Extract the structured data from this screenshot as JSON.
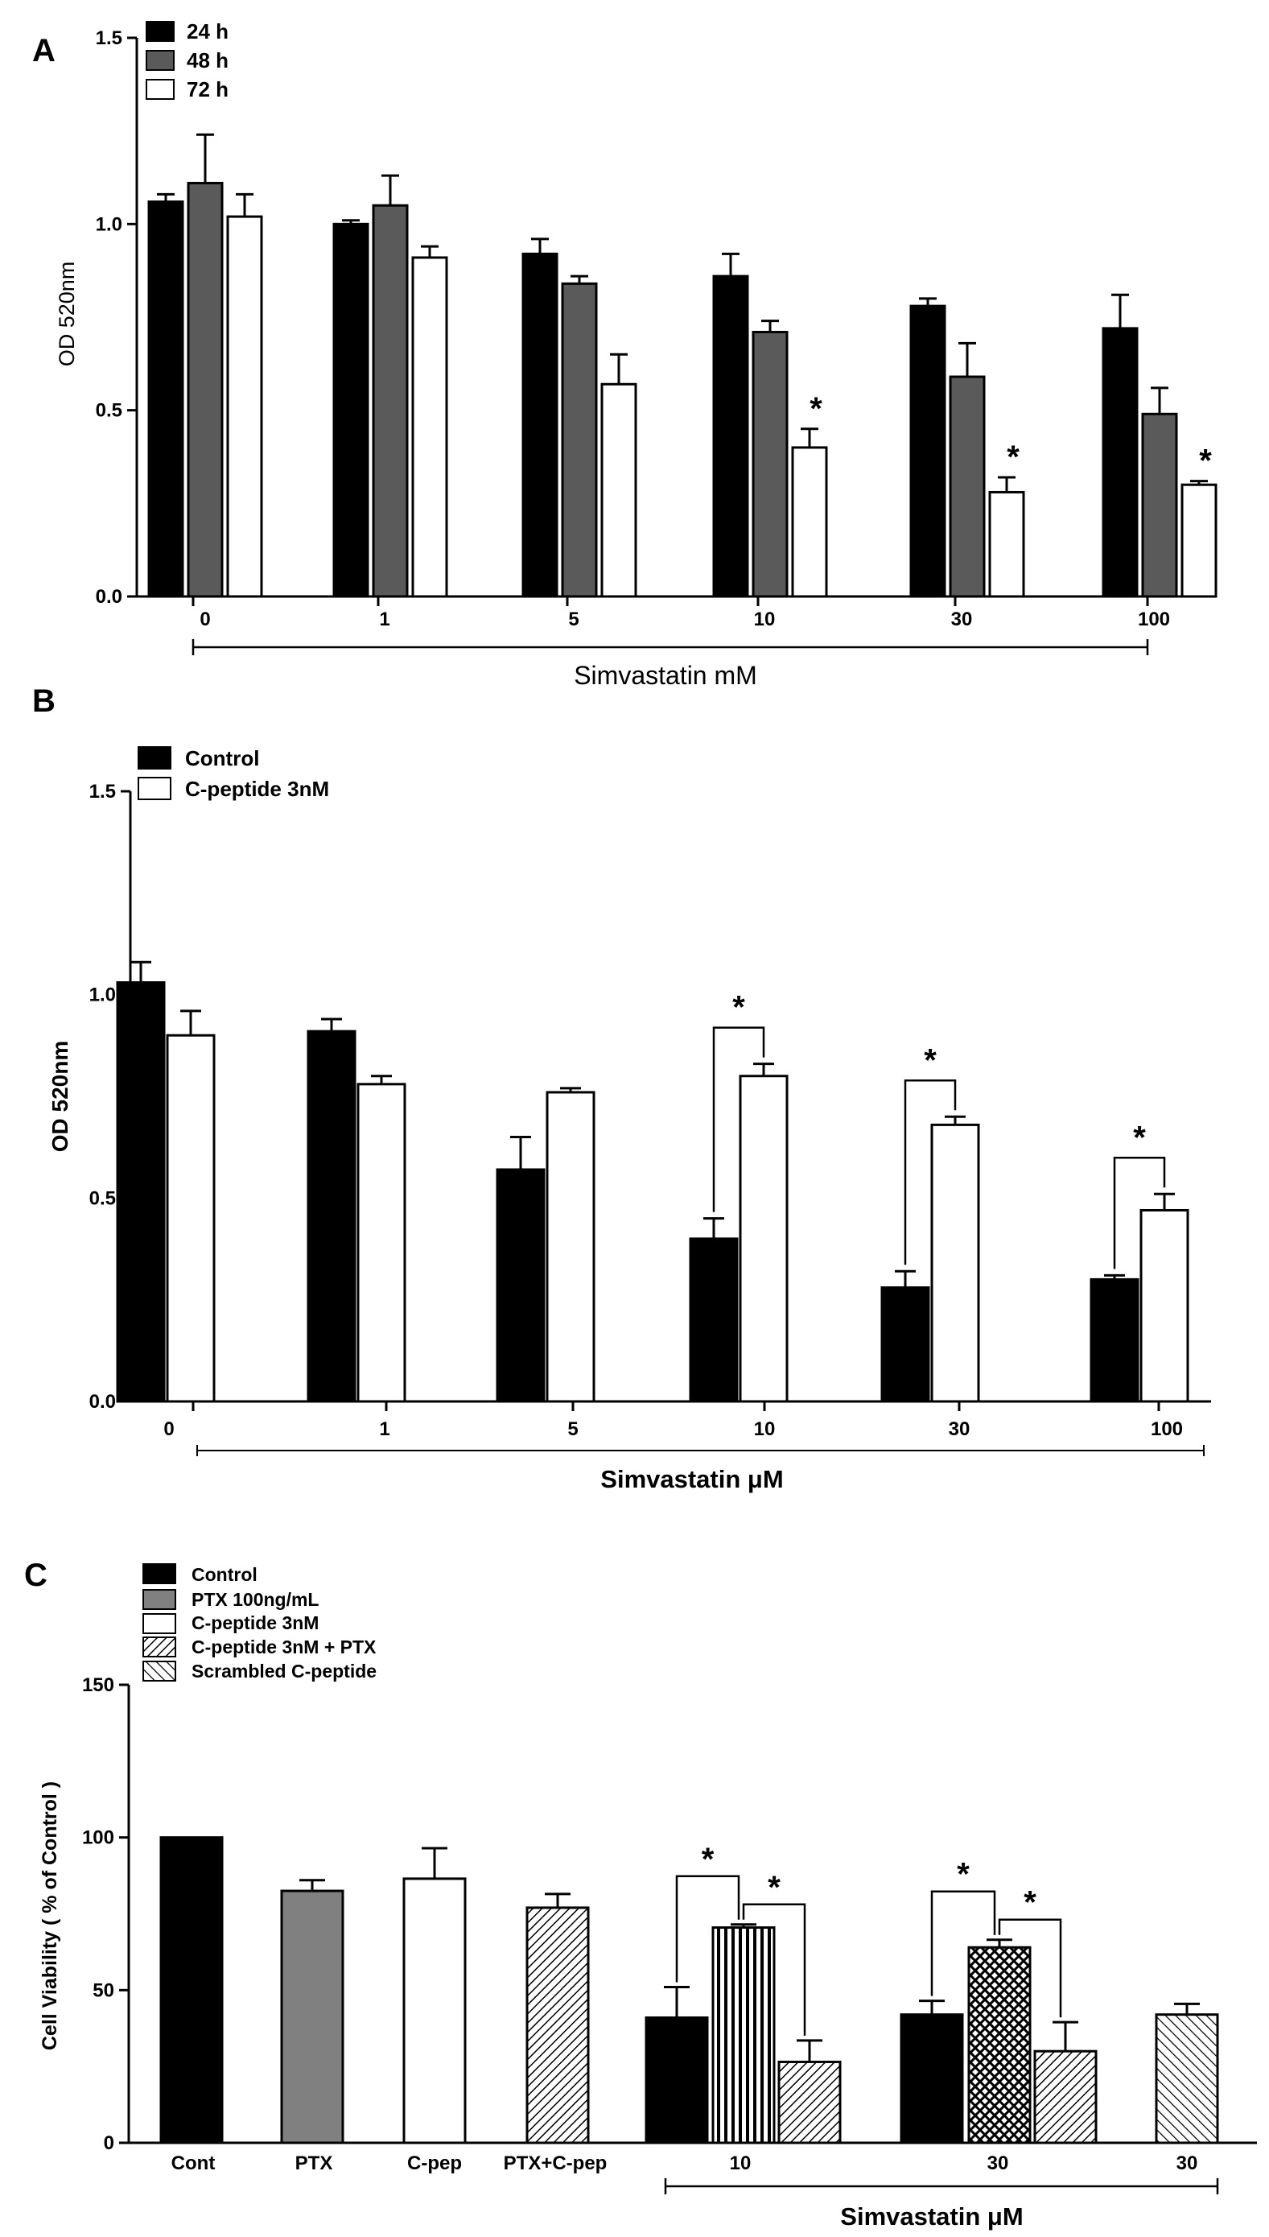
{
  "colors": {
    "black": "#000000",
    "darkgray": "#5a5a5a",
    "gray": "#808080",
    "white": "#ffffff"
  },
  "chart_data": [
    {
      "panel": "A",
      "type": "bar",
      "title": "",
      "xlabel": "Simvastatin mM",
      "ylabel": "OD 520nm",
      "ylim": [
        0,
        1.5
      ],
      "yticks": [
        "0.0",
        "0.5",
        "1.0",
        "1.5"
      ],
      "categories": [
        "0",
        "1",
        "5",
        "10",
        "30",
        "100"
      ],
      "legend_position": "top-left",
      "series": [
        {
          "name": "24 h",
          "fill": "black",
          "values": [
            1.06,
            1.0,
            0.92,
            0.86,
            0.78,
            0.72
          ],
          "errors": [
            0.02,
            0.01,
            0.04,
            0.06,
            0.02,
            0.09
          ]
        },
        {
          "name": "48 h",
          "fill": "darkgray",
          "values": [
            1.11,
            1.05,
            0.84,
            0.71,
            0.59,
            0.49
          ],
          "errors": [
            0.13,
            0.08,
            0.02,
            0.03,
            0.09,
            0.07
          ]
        },
        {
          "name": "72 h",
          "fill": "white",
          "values": [
            1.02,
            0.91,
            0.57,
            0.4,
            0.28,
            0.3
          ],
          "errors": [
            0.06,
            0.03,
            0.08,
            0.05,
            0.04,
            0.01
          ]
        }
      ],
      "annotations": [
        {
          "text": "*",
          "category": 3,
          "series": 2
        },
        {
          "text": "*",
          "category": 4,
          "series": 2
        },
        {
          "text": "*",
          "category": 5,
          "series": 2
        }
      ]
    },
    {
      "panel": "B",
      "type": "bar",
      "title": "",
      "xlabel": "Simvastatin μM",
      "ylabel": "OD 520nm",
      "ylim": [
        0,
        1.5
      ],
      "yticks": [
        "0.0",
        "0.5",
        "1.0",
        "1.5"
      ],
      "categories": [
        "0",
        "1",
        "5",
        "10",
        "30",
        "100"
      ],
      "legend_position": "top-left",
      "series": [
        {
          "name": "Control",
          "fill": "black",
          "values": [
            1.03,
            0.91,
            0.57,
            0.4,
            0.28,
            0.3
          ],
          "errors": [
            0.05,
            0.03,
            0.08,
            0.05,
            0.04,
            0.01
          ]
        },
        {
          "name": "C-peptide 3nM",
          "fill": "white",
          "values": [
            0.9,
            0.78,
            0.76,
            0.8,
            0.68,
            0.47
          ],
          "errors": [
            0.06,
            0.02,
            0.01,
            0.03,
            0.02,
            0.04
          ]
        }
      ],
      "annotations": [
        {
          "text": "*",
          "category": 3
        },
        {
          "text": "*",
          "category": 4
        },
        {
          "text": "*",
          "category": 5
        }
      ]
    },
    {
      "panel": "C",
      "type": "bar",
      "title": "",
      "xlabel": "Simvastatin μM",
      "ylabel": "Cell Viability ( % of Control )",
      "ylim": [
        0,
        150
      ],
      "yticks": [
        "0",
        "50",
        "100",
        "150"
      ],
      "categories": [
        "Cont",
        "PTX",
        "C-pep",
        "PTX+C-pep",
        "10",
        "30",
        "30"
      ],
      "legend_position": "top-left",
      "legend": [
        {
          "name": "Control",
          "fill": "black"
        },
        {
          "name": "PTX 100ng/mL",
          "fill": "gray"
        },
        {
          "name": "C-peptide 3nM",
          "fill": "white"
        },
        {
          "name": "C-peptide 3nM + PTX",
          "fill": "hatch-dense"
        },
        {
          "name": "Scrambled C-peptide",
          "fill": "hatch-diagonal"
        }
      ],
      "bars": [
        {
          "category": 0,
          "fill": "black",
          "value": 100,
          "error": 0
        },
        {
          "category": 1,
          "fill": "gray",
          "value": 82.5,
          "error": 3.5
        },
        {
          "category": 2,
          "fill": "white",
          "value": 86.5,
          "error": 10
        },
        {
          "category": 3,
          "fill": "hatch-dense",
          "value": 77,
          "error": 4.5
        },
        {
          "category": 4,
          "fill": "black",
          "value": 41,
          "error": 10
        },
        {
          "category": 4,
          "fill": "vertical-stripes",
          "value": 70.5,
          "error": 1
        },
        {
          "category": 4,
          "fill": "hatch-dense",
          "value": 26.5,
          "error": 7
        },
        {
          "category": 5,
          "fill": "black",
          "value": 42,
          "error": 4.5
        },
        {
          "category": 5,
          "fill": "crosshatch",
          "value": 64,
          "error": 2.5
        },
        {
          "category": 5,
          "fill": "hatch-dense",
          "value": 30,
          "error": 9.5
        },
        {
          "category": 6,
          "fill": "hatch-diagonal",
          "value": 42,
          "error": 3.5
        }
      ],
      "annotations": [
        {
          "text": "*",
          "from_bar": 4,
          "to_bar": 5
        },
        {
          "text": "*",
          "from_bar": 5,
          "to_bar": 6
        },
        {
          "text": "*",
          "from_bar": 7,
          "to_bar": 8
        },
        {
          "text": "*",
          "from_bar": 8,
          "to_bar": 9
        }
      ]
    }
  ]
}
